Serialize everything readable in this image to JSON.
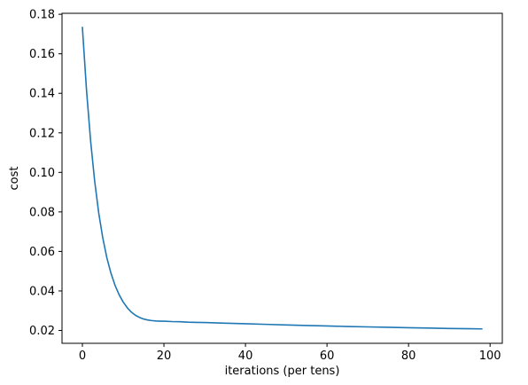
{
  "chart_data": {
    "type": "line",
    "title": "",
    "xlabel": "iterations (per tens)",
    "ylabel": "cost",
    "xlim": [
      -5,
      103
    ],
    "ylim": [
      0.0135,
      0.1805
    ],
    "xticks": [
      0,
      20,
      40,
      60,
      80,
      100
    ],
    "yticks": [
      0.02,
      0.04,
      0.06,
      0.08,
      0.1,
      0.12,
      0.14,
      0.16,
      0.18
    ],
    "xtick_labels": [
      "0",
      "20",
      "40",
      "60",
      "80",
      "100"
    ],
    "ytick_labels": [
      "0.02",
      "0.04",
      "0.06",
      "0.08",
      "0.10",
      "0.12",
      "0.14",
      "0.16",
      "0.18"
    ],
    "grid": false,
    "legend": false,
    "color": "#1f77b4",
    "series": [
      {
        "x": [
          0,
          1,
          2,
          3,
          4,
          5,
          6,
          7,
          8,
          9,
          10,
          11,
          12,
          13,
          14,
          15,
          16,
          17,
          18,
          19,
          20,
          22,
          24,
          26,
          28,
          30,
          35,
          40,
          45,
          50,
          55,
          60,
          65,
          70,
          75,
          80,
          85,
          90,
          95,
          98
        ],
        "y": [
          0.1734,
          0.1419,
          0.1163,
          0.0958,
          0.0795,
          0.0668,
          0.0568,
          0.049,
          0.0429,
          0.0381,
          0.0344,
          0.0315,
          0.0293,
          0.0277,
          0.0266,
          0.0258,
          0.0253,
          0.025,
          0.0248,
          0.0247,
          0.0247,
          0.0245,
          0.0244,
          0.0242,
          0.0241,
          0.024,
          0.0237,
          0.0234,
          0.0231,
          0.0228,
          0.0225,
          0.0223,
          0.022,
          0.0218,
          0.0216,
          0.0214,
          0.0212,
          0.021,
          0.0209,
          0.0208
        ]
      }
    ]
  }
}
